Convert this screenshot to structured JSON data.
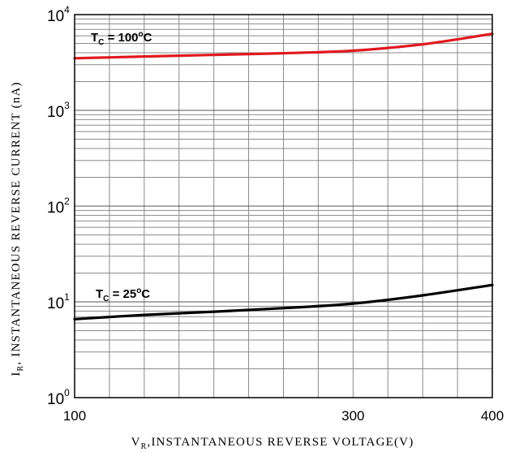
{
  "chart_data": {
    "type": "line",
    "title": "",
    "xlabel": {
      "main": "V",
      "sub": "R",
      "rest": ",INSTANTANEOUS REVERSE VOLTAGE(V)"
    },
    "ylabel": {
      "main": "I",
      "sub": "R",
      "rest": ", INSTANTANEOUS REVERSE CURRENT (nA)"
    },
    "xlim": [
      100,
      400
    ],
    "ylim": [
      1,
      10000
    ],
    "yscale": "log",
    "grid": true,
    "x_ticks": [
      {
        "value": 100,
        "label": "100"
      },
      {
        "value": 300,
        "label": "300"
      },
      {
        "value": 400,
        "label": "400"
      }
    ],
    "x_minor": [
      100,
      125,
      150,
      175,
      200,
      225,
      250,
      275,
      300,
      325,
      350,
      375,
      400
    ],
    "y_ticks": [
      {
        "value": 1,
        "base": "10",
        "exp": "0"
      },
      {
        "value": 10,
        "base": "10",
        "exp": "1"
      },
      {
        "value": 100,
        "base": "10",
        "exp": "2"
      },
      {
        "value": 1000,
        "base": "10",
        "exp": "3"
      },
      {
        "value": 10000,
        "base": "10",
        "exp": "4"
      }
    ],
    "series": [
      {
        "name": "T_C = 100°C",
        "color": "#e0191f",
        "x": [
          100,
          150,
          200,
          250,
          300,
          350,
          400
        ],
        "y": [
          3500,
          3650,
          3800,
          3950,
          4200,
          4900,
          6300
        ]
      },
      {
        "name": "T_C = 25°C",
        "color": "#000000",
        "x": [
          100,
          150,
          200,
          250,
          300,
          350,
          400
        ],
        "y": [
          6.6,
          7.3,
          7.9,
          8.6,
          9.6,
          11.7,
          15.0
        ]
      }
    ],
    "annotations": [
      {
        "series": 0,
        "label": {
          "main": "T",
          "sub": "C",
          "pre": " = 100",
          "sup": "o",
          "post": "C"
        }
      },
      {
        "series": 1,
        "label": {
          "main": "T",
          "sub": "C",
          "pre": " = 25",
          "sup": "o",
          "post": "C"
        }
      }
    ]
  }
}
